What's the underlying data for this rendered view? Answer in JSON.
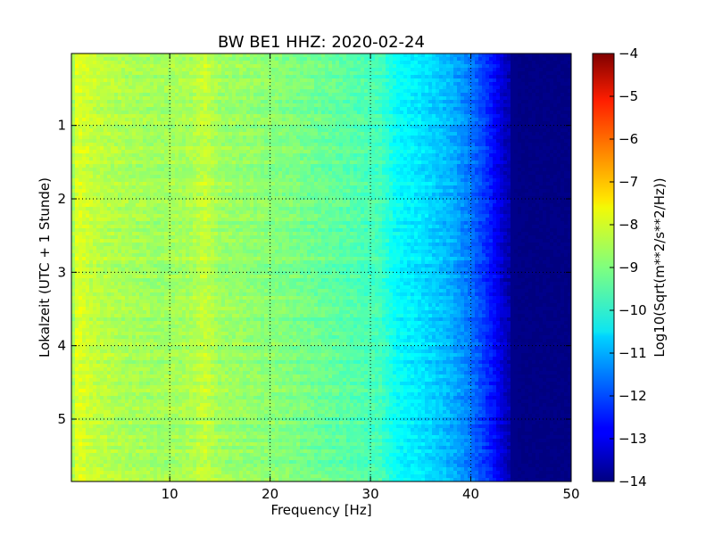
{
  "chart_data": {
    "type": "heatmap",
    "title": "BW BE1 HHZ: 2020-02-24",
    "xlabel": "Frequency [Hz]",
    "ylabel": "Lokalzeit (UTC + 1 Stunde)",
    "xlim": [
      0.2,
      50
    ],
    "ylim": [
      5.85,
      0.02
    ],
    "xticks": [
      10,
      20,
      30,
      40,
      50
    ],
    "xtick_labels": [
      "10",
      "20",
      "30",
      "40",
      "50"
    ],
    "yticks": [
      1,
      2,
      3,
      4,
      5
    ],
    "ytick_labels": [
      "1",
      "2",
      "3",
      "4",
      "5"
    ],
    "grid": true,
    "colormap": "jet",
    "colorbar": {
      "label": "Log10(Sqrt(m**2/s**2/Hz))",
      "range": [
        -14,
        -4
      ],
      "ticks": [
        -4,
        -5,
        -6,
        -7,
        -8,
        -9,
        -10,
        -11,
        -12,
        -13,
        -14
      ],
      "tick_labels": [
        "−4",
        "−5",
        "−6",
        "−7",
        "−8",
        "−9",
        "−10",
        "−11",
        "−12",
        "−13",
        "−14"
      ]
    },
    "profile": {
      "frequency_hz": [
        0.2,
        0.8,
        1.5,
        3,
        6,
        9,
        12,
        13.5,
        15,
        20,
        25,
        28,
        31,
        32.5,
        35,
        38,
        40,
        42,
        43.5,
        45,
        50
      ],
      "log10_amplitude": [
        -8.9,
        -8.0,
        -8.2,
        -8.4,
        -8.6,
        -8.7,
        -8.6,
        -8.3,
        -8.7,
        -8.9,
        -9.2,
        -9.4,
        -9.6,
        -10.2,
        -10.5,
        -11.0,
        -11.6,
        -12.5,
        -13.4,
        -13.95,
        -14.0
      ]
    }
  }
}
